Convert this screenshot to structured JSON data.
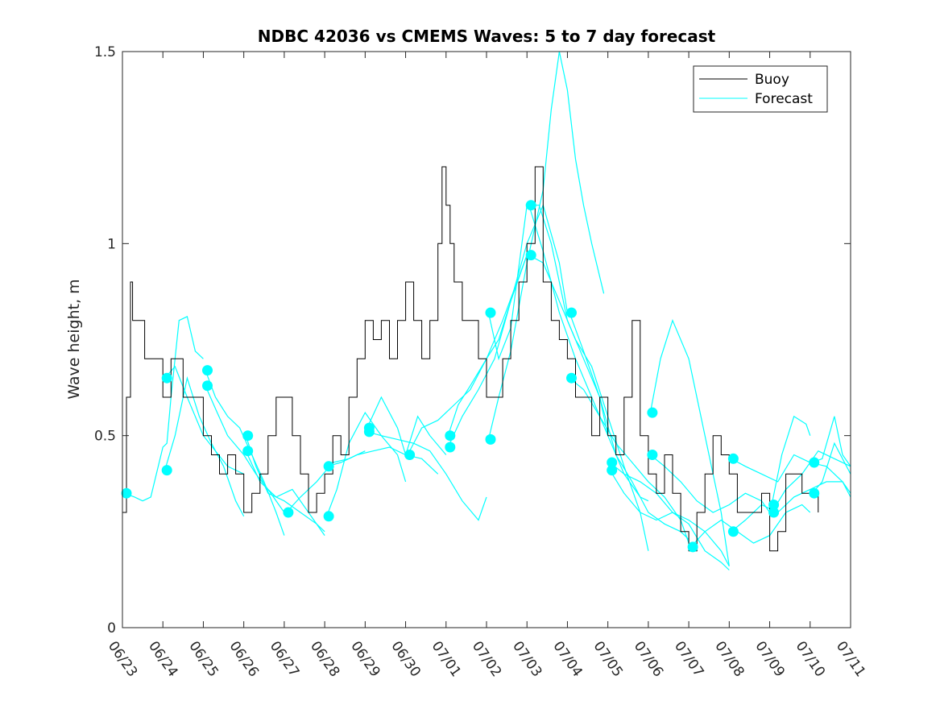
{
  "chart_data": {
    "type": "line",
    "title": "NDBC 42036 vs CMEMS Waves: 5 to 7 day forecast",
    "xlabel": "",
    "ylabel": "Wave height, m",
    "xlim": [
      0,
      18
    ],
    "ylim": [
      0,
      1.5
    ],
    "x_tick_values": [
      0,
      1,
      2,
      3,
      4,
      5,
      6,
      7,
      8,
      9,
      10,
      11,
      12,
      13,
      14,
      15,
      16,
      17,
      18
    ],
    "x_tick_labels": [
      "06/23",
      "06/24",
      "06/25",
      "06/26",
      "06/27",
      "06/28",
      "06/29",
      "06/30",
      "07/01",
      "07/02",
      "07/03",
      "07/04",
      "07/05",
      "07/06",
      "07/07",
      "07/08",
      "07/09",
      "07/10",
      "07/11"
    ],
    "y_tick_values": [
      0,
      0.5,
      1,
      1.5
    ],
    "y_tick_labels": [
      "0",
      "0.5",
      "1",
      "1.5"
    ],
    "grid": false,
    "legend_position": "top-right",
    "legend": [
      "Buoy",
      "Forecast"
    ],
    "colors": {
      "buoy": "#000000",
      "forecast": "#00ffff"
    },
    "buoy": {
      "name": "Buoy",
      "x": [
        0,
        0.1,
        0.2,
        0.25,
        0.3,
        0.4,
        0.55,
        0.7,
        0.8,
        1.0,
        1.2,
        1.5,
        1.8,
        2.0,
        2.2,
        2.4,
        2.6,
        2.8,
        3.0,
        3.2,
        3.4,
        3.6,
        3.8,
        4.0,
        4.2,
        4.4,
        4.6,
        4.8,
        5.0,
        5.2,
        5.4,
        5.6,
        5.8,
        6.0,
        6.2,
        6.4,
        6.6,
        6.8,
        7.0,
        7.2,
        7.4,
        7.6,
        7.8,
        7.9,
        8.0,
        8.1,
        8.2,
        8.4,
        8.6,
        8.8,
        9.0,
        9.2,
        9.4,
        9.6,
        9.8,
        10.0,
        10.2,
        10.4,
        10.6,
        10.8,
        11.0,
        11.2,
        11.4,
        11.6,
        11.8,
        12.0,
        12.2,
        12.4,
        12.6,
        12.8,
        13.0,
        13.2,
        13.4,
        13.6,
        13.8,
        14.0,
        14.2,
        14.4,
        14.6,
        14.8,
        15.0,
        15.2,
        15.4,
        15.6,
        15.8,
        16.0,
        16.2,
        16.4,
        16.6,
        16.8,
        17.0,
        17.2
      ],
      "y": [
        0.3,
        0.6,
        0.9,
        0.8,
        0.8,
        0.8,
        0.7,
        0.7,
        0.7,
        0.6,
        0.7,
        0.6,
        0.6,
        0.5,
        0.45,
        0.4,
        0.45,
        0.4,
        0.3,
        0.35,
        0.4,
        0.5,
        0.6,
        0.6,
        0.5,
        0.4,
        0.3,
        0.35,
        0.4,
        0.5,
        0.45,
        0.6,
        0.7,
        0.8,
        0.75,
        0.8,
        0.7,
        0.8,
        0.9,
        0.8,
        0.7,
        0.8,
        1.0,
        1.2,
        1.1,
        1.0,
        0.9,
        0.8,
        0.8,
        0.7,
        0.6,
        0.6,
        0.7,
        0.8,
        0.9,
        1.0,
        1.2,
        0.9,
        0.8,
        0.75,
        0.7,
        0.6,
        0.6,
        0.5,
        0.6,
        0.5,
        0.45,
        0.6,
        0.8,
        0.5,
        0.4,
        0.35,
        0.45,
        0.35,
        0.25,
        0.2,
        0.3,
        0.4,
        0.5,
        0.45,
        0.4,
        0.3,
        0.3,
        0.3,
        0.35,
        0.2,
        0.25,
        0.4,
        0.4,
        0.35,
        0.35,
        0.3
      ]
    },
    "forecast": {
      "name": "Forecast",
      "series": [
        {
          "x": [
            0.05,
            0.3,
            0.5,
            0.7,
            1.0,
            1.1,
            1.2,
            1.4,
            1.6,
            1.8,
            2.0
          ],
          "y": [
            0.35,
            0.34,
            0.33,
            0.34,
            0.47,
            0.48,
            0.6,
            0.8,
            0.81,
            0.72,
            0.7
          ]
        },
        {
          "x": [
            1.05,
            1.3,
            1.6,
            1.9,
            2.2,
            2.5,
            2.8,
            3.0
          ],
          "y": [
            0.41,
            0.5,
            0.65,
            0.55,
            0.48,
            0.42,
            0.33,
            0.29
          ]
        },
        {
          "x": [
            1.05,
            1.3,
            1.6,
            2.0,
            2.3,
            2.6,
            3.0
          ],
          "y": [
            0.65,
            0.68,
            0.6,
            0.5,
            0.46,
            0.42,
            0.4
          ]
        },
        {
          "x": [
            2.05,
            2.3,
            2.6,
            2.9,
            3.2,
            3.5,
            3.8,
            4.0
          ],
          "y": [
            0.67,
            0.6,
            0.55,
            0.52,
            0.45,
            0.38,
            0.3,
            0.24
          ]
        },
        {
          "x": [
            2.05,
            2.3,
            2.6,
            3.0,
            3.3,
            3.6,
            4.0
          ],
          "y": [
            0.63,
            0.57,
            0.5,
            0.45,
            0.4,
            0.36,
            0.3
          ]
        },
        {
          "x": [
            3.05,
            3.3,
            3.6,
            4.0,
            4.4,
            4.8,
            5.0
          ],
          "y": [
            0.5,
            0.42,
            0.35,
            0.33,
            0.3,
            0.27,
            0.25
          ]
        },
        {
          "x": [
            3.05,
            3.4,
            3.8,
            4.2,
            4.6,
            5.0
          ],
          "y": [
            0.46,
            0.38,
            0.34,
            0.36,
            0.3,
            0.24
          ]
        },
        {
          "x": [
            4.05,
            4.4,
            4.8,
            5.2,
            5.6,
            6.0
          ],
          "y": [
            0.3,
            0.34,
            0.38,
            0.43,
            0.44,
            0.46
          ]
        },
        {
          "x": [
            5.05,
            5.3,
            5.6,
            6.0,
            6.4,
            6.8,
            7.0
          ],
          "y": [
            0.29,
            0.36,
            0.48,
            0.56,
            0.5,
            0.45,
            0.38
          ]
        },
        {
          "x": [
            5.05,
            5.4,
            5.8,
            6.2,
            6.6,
            7.0,
            7.4,
            7.8
          ],
          "y": [
            0.42,
            0.43,
            0.45,
            0.46,
            0.47,
            0.45,
            0.44,
            0.4
          ]
        },
        {
          "x": [
            6.05,
            6.4,
            6.8,
            7.2,
            7.6,
            8.0,
            8.4,
            8.8,
            9.0
          ],
          "y": [
            0.51,
            0.5,
            0.49,
            0.48,
            0.46,
            0.4,
            0.33,
            0.28,
            0.34
          ]
        },
        {
          "x": [
            6.05,
            6.4,
            6.8,
            7.0,
            7.3,
            7.6,
            8.0
          ],
          "y": [
            0.52,
            0.6,
            0.52,
            0.45,
            0.55,
            0.5,
            0.45
          ]
        },
        {
          "x": [
            7.05,
            7.4,
            7.8,
            8.2,
            8.6,
            9.0,
            9.4,
            10.0
          ],
          "y": [
            0.45,
            0.52,
            0.54,
            0.58,
            0.62,
            0.7,
            0.8,
            0.97
          ]
        },
        {
          "x": [
            8.05,
            8.3,
            8.6,
            9.0,
            9.3,
            9.6,
            10.0
          ],
          "y": [
            0.5,
            0.58,
            0.63,
            0.7,
            0.75,
            0.85,
            0.97
          ]
        },
        {
          "x": [
            8.05,
            8.4,
            8.8,
            9.2,
            9.6,
            10.0,
            10.4,
            10.8,
            11.0
          ],
          "y": [
            0.47,
            0.55,
            0.62,
            0.7,
            0.85,
            1.0,
            1.1,
            0.95,
            0.82
          ]
        },
        {
          "x": [
            9.05,
            9.3,
            9.6,
            10.0,
            10.4,
            10.6,
            10.8,
            11.0,
            11.2,
            11.4,
            11.6,
            11.9
          ],
          "y": [
            0.49,
            0.6,
            0.72,
            0.95,
            1.14,
            1.35,
            1.5,
            1.4,
            1.22,
            1.1,
            1.0,
            0.87
          ]
        },
        {
          "x": [
            9.05,
            9.3,
            9.6,
            10.0,
            10.3,
            10.6,
            11.0,
            11.4,
            11.8,
            12.0
          ],
          "y": [
            0.82,
            0.7,
            0.78,
            1.1,
            1.1,
            1.0,
            0.8,
            0.7,
            0.6,
            0.5
          ]
        },
        {
          "x": [
            10.05,
            10.4,
            10.8,
            11.2,
            11.6,
            12.0,
            12.4,
            12.8,
            13.0
          ],
          "y": [
            0.97,
            0.95,
            0.85,
            0.75,
            0.68,
            0.55,
            0.42,
            0.3,
            0.2
          ]
        },
        {
          "x": [
            10.05,
            10.4,
            10.8,
            11.2,
            11.6,
            12.0,
            12.4,
            12.8,
            13.0
          ],
          "y": [
            1.1,
            0.98,
            0.82,
            0.7,
            0.6,
            0.5,
            0.4,
            0.34,
            0.33
          ]
        },
        {
          "x": [
            11.05,
            11.4,
            11.8,
            12.2,
            12.6,
            13.0,
            13.4,
            13.8,
            14.0
          ],
          "y": [
            0.82,
            0.72,
            0.6,
            0.45,
            0.38,
            0.3,
            0.27,
            0.25,
            0.23
          ]
        },
        {
          "x": [
            11.05,
            11.4,
            11.8,
            12.2,
            12.6,
            13.0,
            13.4,
            13.8,
            14.0
          ],
          "y": [
            0.65,
            0.62,
            0.55,
            0.48,
            0.43,
            0.38,
            0.34,
            0.28,
            0.22
          ]
        },
        {
          "x": [
            12.05,
            12.4,
            12.8,
            13.2,
            13.6,
            14.0,
            14.4,
            14.8,
            15.0
          ],
          "y": [
            0.43,
            0.4,
            0.38,
            0.35,
            0.3,
            0.28,
            0.25,
            0.2,
            0.16
          ]
        },
        {
          "x": [
            12.05,
            12.4,
            12.8,
            13.2,
            13.6,
            14.0,
            14.4,
            14.8,
            15.0
          ],
          "y": [
            0.41,
            0.35,
            0.3,
            0.28,
            0.3,
            0.27,
            0.2,
            0.17,
            0.15
          ]
        },
        {
          "x": [
            13.05,
            13.3,
            13.6,
            14.0,
            14.4,
            14.8,
            15.0
          ],
          "y": [
            0.56,
            0.7,
            0.8,
            0.7,
            0.5,
            0.3,
            0.16
          ]
        },
        {
          "x": [
            13.05,
            13.4,
            13.8,
            14.2,
            14.6,
            15.0,
            15.4,
            15.8,
            16.0
          ],
          "y": [
            0.45,
            0.42,
            0.38,
            0.33,
            0.3,
            0.32,
            0.35,
            0.33,
            0.3
          ]
        },
        {
          "x": [
            14.05,
            14.4,
            14.8,
            15.2,
            15.6,
            16.0,
            16.4,
            16.8,
            17.0
          ],
          "y": [
            0.21,
            0.25,
            0.28,
            0.25,
            0.22,
            0.24,
            0.3,
            0.32,
            0.3
          ]
        },
        {
          "x": [
            15.05,
            15.4,
            15.8,
            16.2,
            16.6,
            17.0,
            17.4,
            17.8,
            18.0
          ],
          "y": [
            0.25,
            0.28,
            0.32,
            0.3,
            0.34,
            0.36,
            0.38,
            0.38,
            0.34
          ]
        },
        {
          "x": [
            15.05,
            15.4,
            15.8,
            16.2,
            16.6,
            17.0,
            17.4,
            17.8,
            18.0
          ],
          "y": [
            0.44,
            0.42,
            0.4,
            0.38,
            0.45,
            0.43,
            0.42,
            0.38,
            0.35
          ]
        },
        {
          "x": [
            16.05,
            16.3,
            16.6,
            16.9,
            17.0
          ],
          "y": [
            0.32,
            0.45,
            0.55,
            0.53,
            0.5
          ]
        },
        {
          "x": [
            16.05,
            16.4,
            16.8,
            17.2,
            17.6,
            18.0
          ],
          "y": [
            0.3,
            0.36,
            0.4,
            0.46,
            0.44,
            0.42
          ]
        },
        {
          "x": [
            17.05,
            17.3,
            17.6,
            18.0
          ],
          "y": [
            0.35,
            0.38,
            0.48,
            0.4
          ]
        },
        {
          "x": [
            17.05,
            17.3,
            17.6,
            17.8,
            18.0
          ],
          "y": [
            0.43,
            0.44,
            0.55,
            0.45,
            0.42
          ]
        }
      ],
      "markers": {
        "x": [
          0.1,
          1.1,
          1.1,
          2.1,
          2.1,
          3.1,
          3.1,
          4.1,
          5.1,
          5.1,
          6.1,
          6.1,
          7.1,
          8.1,
          8.1,
          9.1,
          9.1,
          10.1,
          10.1,
          11.1,
          11.1,
          12.1,
          12.1,
          13.1,
          13.1,
          14.1,
          15.1,
          15.1,
          16.1,
          16.1,
          17.1,
          17.1
        ],
        "y": [
          0.35,
          0.41,
          0.65,
          0.67,
          0.63,
          0.5,
          0.46,
          0.3,
          0.29,
          0.42,
          0.51,
          0.52,
          0.45,
          0.5,
          0.47,
          0.49,
          0.82,
          0.97,
          1.1,
          0.82,
          0.65,
          0.43,
          0.41,
          0.56,
          0.45,
          0.21,
          0.25,
          0.44,
          0.32,
          0.3,
          0.35,
          0.43
        ]
      }
    }
  }
}
